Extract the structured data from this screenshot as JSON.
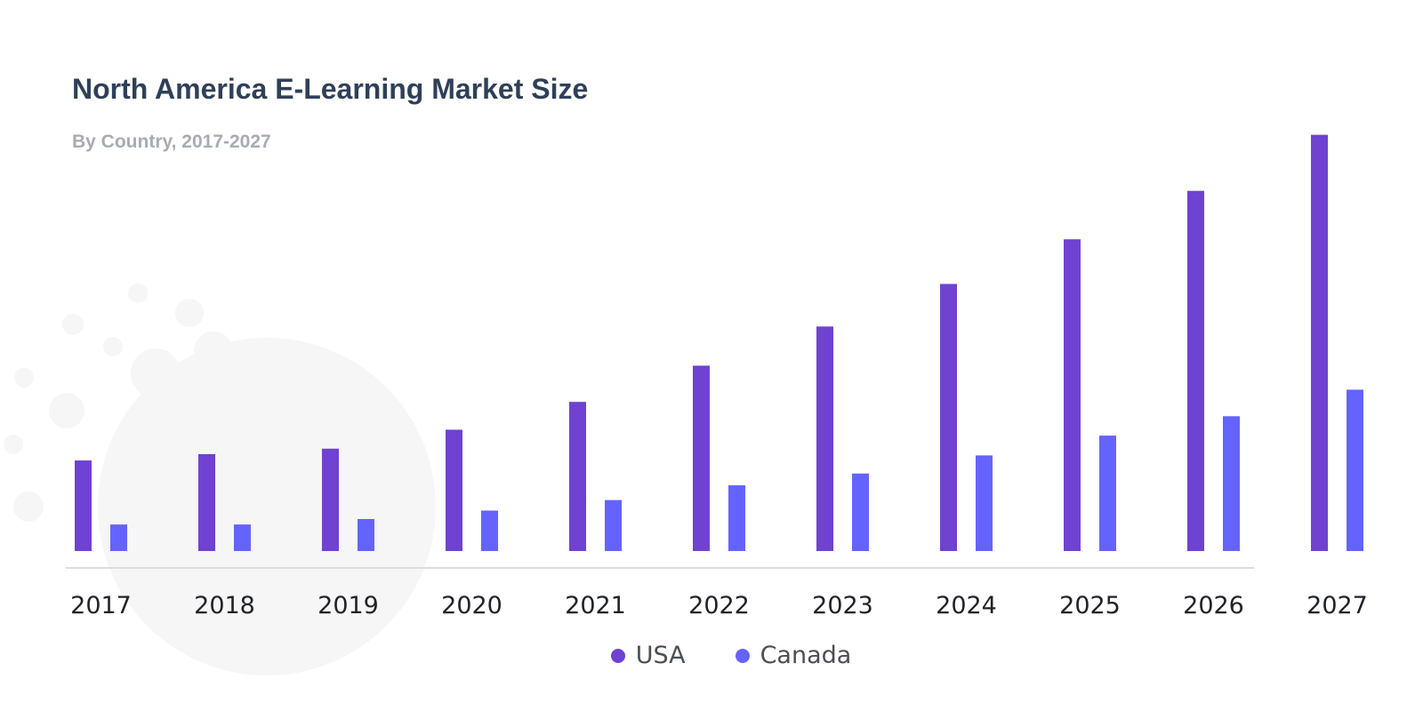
{
  "chart_data": {
    "type": "bar",
    "title": "North America E-Learning Market Size",
    "subtitle": "By Country, 2017-2027",
    "categories": [
      "2017",
      "2018",
      "2019",
      "2020",
      "2021",
      "2022",
      "2023",
      "2024",
      "2025",
      "2026",
      "2027"
    ],
    "series": [
      {
        "name": "USA",
        "color": "#6f42d2",
        "values": [
          21.5,
          23.0,
          24.3,
          28.8,
          35.4,
          44.0,
          53.3,
          63.4,
          74.0,
          85.5,
          98.8
        ]
      },
      {
        "name": "Canada",
        "color": "#6563fd",
        "values": [
          6.3,
          6.3,
          7.6,
          9.6,
          12.1,
          15.6,
          18.4,
          22.7,
          27.4,
          32.0,
          38.3
        ]
      }
    ],
    "xlabel": "",
    "ylabel": "",
    "ylim": [
      0,
      100
    ],
    "grid": false,
    "legend_position": "bottom-center",
    "y_axis_visible": false
  }
}
